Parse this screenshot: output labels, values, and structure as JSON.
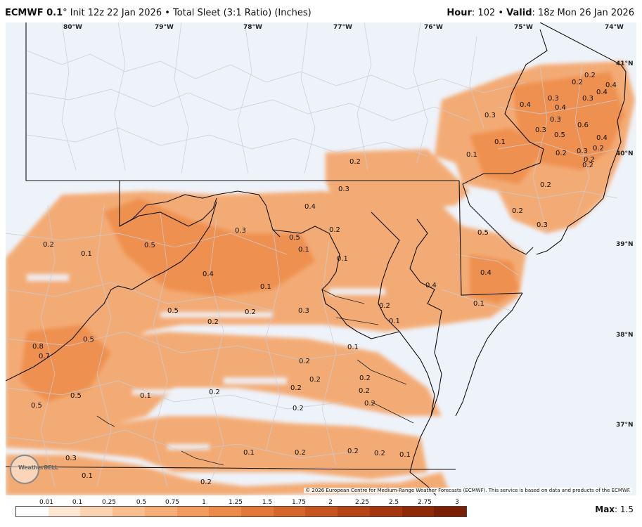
{
  "header": {
    "model": "ECMWF 0.1",
    "degree": "°",
    "subtitle": " Init 12z 22 Jan 2026 • Total Sleet (3:1 Ratio) (Inches)",
    "hour_label": "Hour",
    "hour_value": ": 102 • ",
    "valid_label": "Valid",
    "valid_value": ": 18z Mon 26 Jan 2026"
  },
  "map": {
    "lon_labels": [
      "80°W",
      "79°W",
      "78°W",
      "77°W",
      "76°W",
      "75°W",
      "74°W"
    ],
    "lat_labels": [
      "41°N",
      "40°N",
      "39°N",
      "38°N",
      "37°N"
    ],
    "value_labels": [
      "0.2",
      "0.4",
      "0.4",
      "0.2",
      "0.3",
      "0.3",
      "0.4",
      "0.3",
      "0.4",
      "0.5",
      "0.3",
      "0.6",
      "0.4",
      "0.3",
      "0.1",
      "0.2",
      "0.1",
      "0.2",
      "0.3",
      "0.2",
      "0.2",
      "0.2",
      "0.2",
      "0.3",
      "0.4",
      "0.2",
      "0.2",
      "0.5",
      "0.3",
      "0.5",
      "0.1",
      "0.1",
      "0.2",
      "0.1",
      "0.5",
      "0.4",
      "0.4",
      "0.4",
      "0.1",
      "0.1",
      "0.5",
      "0.2",
      "0.3",
      "0.2",
      "0.3",
      "0.1",
      "0.2",
      "0.8",
      "0.7",
      "0.5",
      "0.1",
      "0.2",
      "0.2",
      "0.2",
      "0.2",
      "0.5",
      "0.5",
      "0.1",
      "0.2",
      "0.2",
      "0.2",
      "0.2",
      "0.3",
      "0.1",
      "0.2",
      "0.2",
      "0.2",
      "0.1",
      "0.1",
      "0.2"
    ],
    "copyright": "© 2026 European Centre for Medium-Range Weather Forecasts (ECMWF). This service is based on data and products of the ECMWF.",
    "logo_text": "WeatherBELL"
  },
  "legend": {
    "ticks": [
      "0.01",
      "0.1",
      "0.25",
      "0.5",
      "0.75",
      "1",
      "1.25",
      "1.5",
      "1.75",
      "2",
      "2.25",
      "2.5",
      "2.75",
      "3"
    ],
    "colors": [
      "#ffffff",
      "#fde7d3",
      "#fbd3b1",
      "#f9bf91",
      "#f7ad76",
      "#f29b5e",
      "#ec8a4a",
      "#e2783a",
      "#d6672c",
      "#c85521",
      "#b64417",
      "#a3360f",
      "#8e2a08",
      "#7a1f03"
    ],
    "max_label": "Max",
    "max_value": ": 1.5"
  }
}
